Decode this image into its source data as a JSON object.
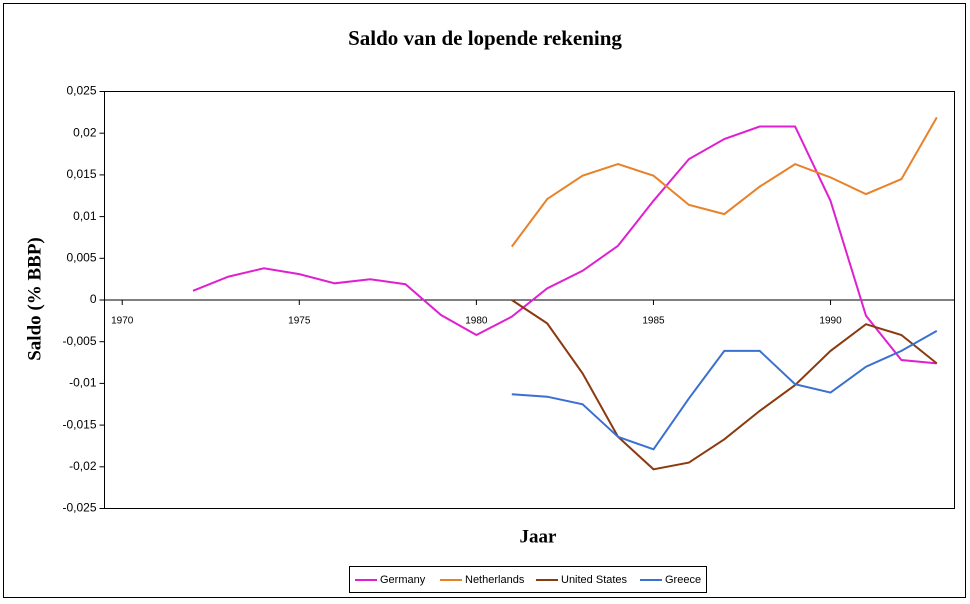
{
  "chart_data": {
    "type": "line",
    "title": "Saldo van de lopende rekening",
    "x_label": "Jaar",
    "y_label": "Saldo (% BBP)",
    "x": [
      1970,
      1971,
      1972,
      1973,
      1974,
      1975,
      1976,
      1977,
      1978,
      1979,
      1980,
      1981,
      1982,
      1983,
      1984,
      1985,
      1986,
      1987,
      1988,
      1989,
      1990,
      1991,
      1992,
      1993
    ],
    "xlim": [
      1969.5,
      1993.5
    ],
    "xticks": [
      1970,
      1975,
      1980,
      1985,
      1990
    ],
    "ylim": [
      -0.025,
      0.025
    ],
    "yticks": [
      {
        "value": -0.025,
        "label": "-0,025"
      },
      {
        "value": -0.02,
        "label": "-0,02"
      },
      {
        "value": -0.015,
        "label": "-0,015"
      },
      {
        "value": -0.01,
        "label": "-0,01"
      },
      {
        "value": -0.005,
        "label": "-0,005"
      },
      0,
      {
        "value": 0.005,
        "label": "0,005"
      },
      {
        "value": 0.01,
        "label": "0,01"
      },
      {
        "value": 0.015,
        "label": "0,015"
      },
      {
        "value": 0.02,
        "label": "0,02"
      },
      {
        "value": 0.025,
        "label": "0,025"
      }
    ],
    "legend": "bottom",
    "series": [
      {
        "name": "Germany",
        "color": "#e020d0",
        "values": [
          null,
          null,
          0.0011,
          0.0028,
          0.0038,
          0.0031,
          0.002,
          0.0025,
          0.0019,
          -0.0018,
          -0.0042,
          -0.002,
          0.0014,
          0.0035,
          0.0065,
          0.0119,
          0.0169,
          0.0193,
          0.0208,
          0.0208,
          0.0119,
          -0.0019,
          -0.0072,
          -0.0076
        ]
      },
      {
        "name": "Netherlands",
        "color": "#e8822a",
        "values": [
          null,
          null,
          null,
          null,
          null,
          null,
          null,
          null,
          null,
          null,
          null,
          0.0064,
          0.0121,
          0.0149,
          0.0163,
          0.0149,
          0.0114,
          0.0103,
          0.0136,
          0.0163,
          0.0147,
          0.0127,
          0.0145,
          0.0219
        ]
      },
      {
        "name": "United States",
        "color": "#8b3a10",
        "values": [
          null,
          null,
          null,
          null,
          null,
          null,
          null,
          null,
          null,
          null,
          null,
          0.0,
          -0.0028,
          -0.0088,
          -0.0164,
          -0.0203,
          -0.0195,
          -0.0167,
          -0.0133,
          -0.0102,
          -0.0061,
          -0.0029,
          -0.0042,
          -0.0076
        ]
      },
      {
        "name": "Greece",
        "color": "#3a70d0",
        "values": [
          null,
          null,
          null,
          null,
          null,
          null,
          null,
          null,
          null,
          null,
          null,
          -0.0113,
          -0.0116,
          -0.0125,
          -0.0164,
          -0.0179,
          -0.0118,
          -0.0061,
          -0.0061,
          -0.0101,
          -0.0111,
          -0.008,
          -0.0061,
          -0.0037
        ]
      }
    ]
  }
}
